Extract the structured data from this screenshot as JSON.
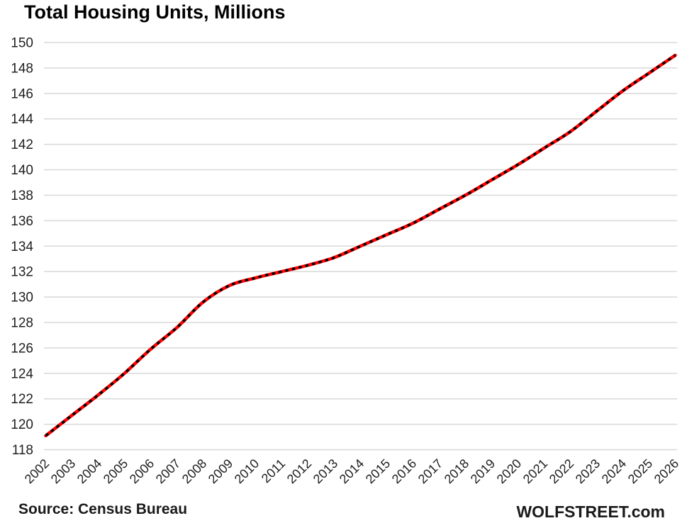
{
  "chart_data": {
    "type": "line",
    "title": "Total Housing Units, Millions",
    "categories": [
      "2002",
      "2003",
      "2004",
      "2005",
      "2006",
      "2007",
      "2008",
      "2009",
      "2010",
      "2011",
      "2012",
      "2013",
      "2014",
      "2015",
      "2016",
      "2017",
      "2018",
      "2019",
      "2020",
      "2021",
      "2022",
      "2023",
      "2024",
      "2025",
      "2026"
    ],
    "series": [
      {
        "name": "Total housing units, millions",
        "values": [
          119.1,
          120.7,
          122.3,
          124.0,
          125.9,
          127.6,
          129.6,
          130.9,
          131.5,
          132.0,
          132.5,
          133.1,
          134.0,
          134.9,
          135.8,
          136.9,
          138.0,
          139.2,
          140.4,
          141.7,
          143.0,
          144.6,
          146.2,
          147.6,
          149.0
        ],
        "line_style": "solid red with black dash overlay",
        "line_color": "#ff0000",
        "dash_color": "#000000"
      }
    ],
    "xlabel": "",
    "ylabel": "",
    "ylim": [
      118,
      150
    ],
    "ytick_step": 2,
    "grid": "horizontal",
    "grid_color": "#d8d8d8",
    "axis_label_color": "#1f1f1f",
    "legend_position": "none",
    "x_label_rotation_deg": 45
  },
  "footer": {
    "source": "Source: Census Bureau",
    "watermark": "WOLFSTREET.com"
  }
}
